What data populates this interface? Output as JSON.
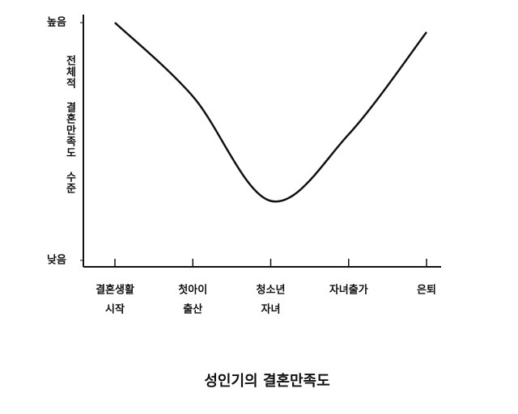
{
  "chart_data": {
    "type": "line",
    "title": "성인기의 결혼만족도",
    "y_label": "전체적 결혼만족도 수준",
    "categories": [
      [
        "결혼생활",
        "시작"
      ],
      [
        "첫아이",
        "출산"
      ],
      [
        "청소년",
        "자녀"
      ],
      [
        "자녀출가"
      ],
      [
        "은퇴"
      ]
    ],
    "values": [
      100,
      69,
      25,
      53,
      96
    ],
    "color": "#111111",
    "ylim": [
      0,
      100
    ],
    "yticks": [
      {
        "value": 0,
        "label": "낮음"
      },
      {
        "value": 100,
        "label": "높음"
      }
    ]
  }
}
